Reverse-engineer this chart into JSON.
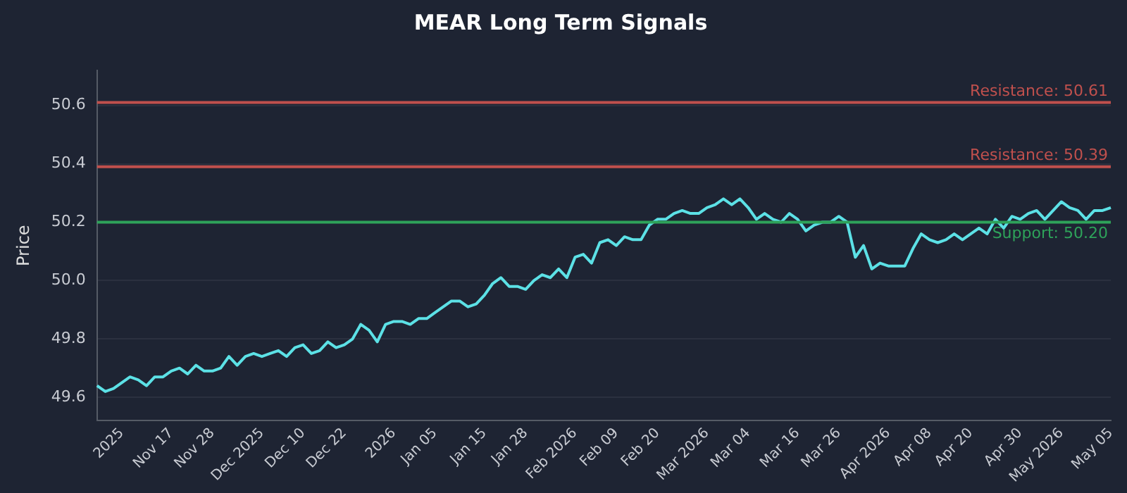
{
  "chart_data": {
    "type": "line",
    "title": "MEAR Long Term Signals",
    "ylabel": "Price",
    "categories": [
      null,
      null,
      null,
      "2025",
      null,
      null,
      null,
      null,
      null,
      "Nov 17",
      null,
      null,
      null,
      null,
      "Nov 28",
      null,
      null,
      null,
      null,
      null,
      "Dec 2025",
      null,
      null,
      null,
      null,
      "Dec 10",
      null,
      null,
      null,
      null,
      "Dec 22",
      null,
      null,
      null,
      null,
      null,
      "2026",
      null,
      null,
      null,
      null,
      "Jan 05",
      null,
      null,
      null,
      null,
      null,
      "Jan 15",
      null,
      null,
      null,
      null,
      "Jan 28",
      null,
      null,
      null,
      null,
      null,
      "Feb 2026",
      null,
      null,
      null,
      null,
      "Feb 09",
      null,
      null,
      null,
      null,
      "Feb 20",
      null,
      null,
      null,
      null,
      null,
      "Mar 2026",
      null,
      null,
      null,
      null,
      "Mar 04",
      null,
      null,
      null,
      null,
      null,
      "Mar 16",
      null,
      null,
      null,
      null,
      "Mar 26",
      null,
      null,
      null,
      null,
      null,
      "Apr 2026",
      null,
      null,
      null,
      null,
      "Apr 08",
      null,
      null,
      null,
      null,
      "Apr 20",
      null,
      null,
      null,
      null,
      null,
      "Apr 30",
      null,
      null,
      null,
      null,
      "May 2026",
      null,
      null,
      null,
      null,
      null,
      "May 05"
    ],
    "series": [
      {
        "color": "#5ce1e6",
        "values": [
          49.64,
          49.62,
          49.63,
          49.65,
          49.67,
          49.66,
          49.64,
          49.67,
          49.67,
          49.69,
          49.7,
          49.68,
          49.71,
          49.69,
          49.69,
          49.7,
          49.74,
          49.71,
          49.74,
          49.75,
          49.74,
          49.75,
          49.76,
          49.74,
          49.77,
          49.78,
          49.75,
          49.76,
          49.79,
          49.77,
          49.78,
          49.8,
          49.85,
          49.83,
          49.79,
          49.85,
          49.86,
          49.86,
          49.85,
          49.87,
          49.87,
          49.89,
          49.91,
          49.93,
          49.93,
          49.91,
          49.92,
          49.95,
          49.99,
          50.01,
          49.98,
          49.98,
          49.97,
          50.0,
          50.02,
          50.01,
          50.04,
          50.01,
          50.08,
          50.09,
          50.06,
          50.13,
          50.14,
          50.12,
          50.15,
          50.14,
          50.14,
          50.19,
          50.21,
          50.21,
          50.23,
          50.24,
          50.23,
          50.23,
          50.25,
          50.26,
          50.28,
          50.26,
          50.28,
          50.25,
          50.21,
          50.23,
          50.21,
          50.2,
          50.23,
          50.21,
          50.17,
          50.19,
          50.2,
          50.2,
          50.22,
          50.2,
          50.08,
          50.12,
          50.04,
          50.06,
          50.05,
          50.05,
          50.05,
          50.11,
          50.16,
          50.14,
          50.13,
          50.14,
          50.16,
          50.14,
          50.16,
          50.18,
          50.16,
          50.21,
          50.18,
          50.22,
          50.21,
          50.23,
          50.24,
          50.21,
          50.24,
          50.27,
          50.25,
          50.24,
          50.21,
          50.24,
          50.24,
          50.25
        ]
      }
    ],
    "ylim": [
      49.52,
      50.72
    ],
    "yticks": [
      49.6,
      49.8,
      {
        "value": 50,
        "label": "50.0"
      },
      50.2,
      50.4,
      50.6
    ],
    "ref_lines": [
      {
        "axis": "y",
        "value": 50.61,
        "label": "Resistance: 50.61",
        "color": "#c0504d"
      },
      {
        "axis": "y",
        "value": 50.39,
        "label": "Resistance: 50.39",
        "color": "#c0504d"
      },
      {
        "axis": "y",
        "value": 50.2,
        "label": "Support: 50.20",
        "color": "#2ea25a"
      }
    ],
    "grid": "y",
    "legend": false,
    "marker": "none",
    "line_style": "solid"
  }
}
